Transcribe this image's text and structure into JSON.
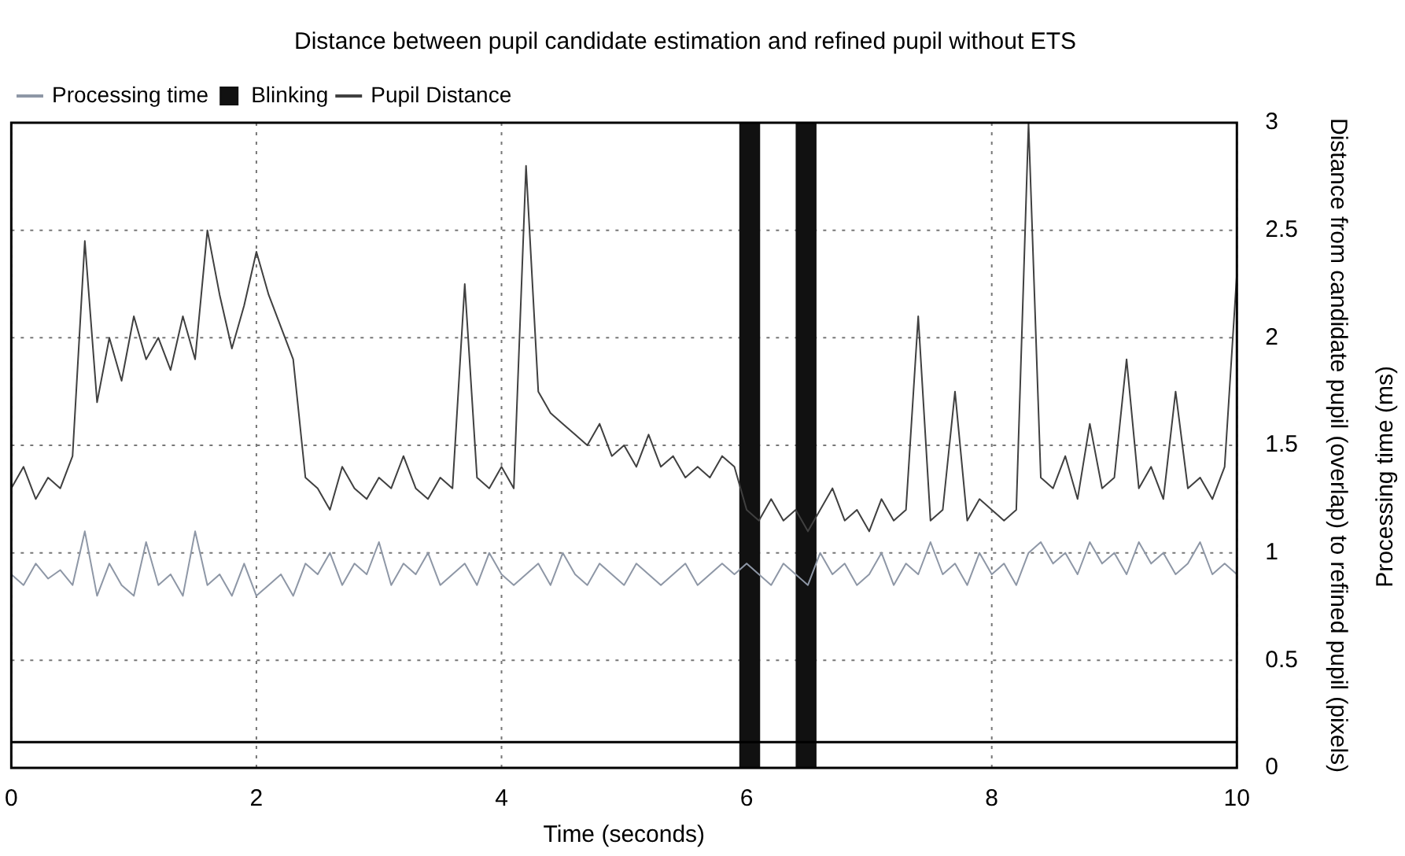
{
  "chart_data": {
    "type": "line",
    "title": "Distance between pupil candidate estimation and refined pupil without ETS",
    "xlabel": "Time (seconds)",
    "ylabel": "Distance from candidate pupil (overlap) to refined pupil (pixels)",
    "y2label": "Processing time (ms)",
    "x": [
      0,
      0.1,
      0.2,
      0.3,
      0.4,
      0.5,
      0.6,
      0.7,
      0.8,
      0.9,
      1,
      1.1,
      1.2,
      1.3,
      1.4,
      1.5,
      1.6,
      1.7,
      1.8,
      1.9,
      2,
      2.1,
      2.2,
      2.3,
      2.4,
      2.5,
      2.6,
      2.7,
      2.8,
      2.9,
      3,
      3.1,
      3.2,
      3.3,
      3.4,
      3.5,
      3.6,
      3.7,
      3.8,
      3.9,
      4,
      4.1,
      4.2,
      4.3,
      4.4,
      4.5,
      4.6,
      4.7,
      4.8,
      4.9,
      5,
      5.1,
      5.2,
      5.3,
      5.4,
      5.5,
      5.6,
      5.7,
      5.8,
      5.9,
      6,
      6.1,
      6.2,
      6.3,
      6.4,
      6.5,
      6.6,
      6.7,
      6.8,
      6.9,
      7,
      7.1,
      7.2,
      7.3,
      7.4,
      7.5,
      7.6,
      7.7,
      7.8,
      7.9,
      8,
      8.1,
      8.2,
      8.3,
      8.4,
      8.5,
      8.6,
      8.7,
      8.8,
      8.9,
      9,
      9.1,
      9.2,
      9.3,
      9.4,
      9.5,
      9.6,
      9.7,
      9.8,
      9.9,
      10
    ],
    "series": [
      {
        "name": "Processing time",
        "color": "#8e97a6",
        "values": [
          0.9,
          0.85,
          0.95,
          0.88,
          0.92,
          0.85,
          1.1,
          0.8,
          0.95,
          0.85,
          0.8,
          1.05,
          0.85,
          0.9,
          0.8,
          1.1,
          0.85,
          0.9,
          0.8,
          0.95,
          0.8,
          0.85,
          0.9,
          0.8,
          0.95,
          0.9,
          1.0,
          0.85,
          0.95,
          0.9,
          1.05,
          0.85,
          0.95,
          0.9,
          1.0,
          0.85,
          0.9,
          0.95,
          0.85,
          1.0,
          0.9,
          0.85,
          0.9,
          0.95,
          0.85,
          1.0,
          0.9,
          0.85,
          0.95,
          0.9,
          0.85,
          0.95,
          0.9,
          0.85,
          0.9,
          0.95,
          0.85,
          0.9,
          0.95,
          0.9,
          0.95,
          0.9,
          0.85,
          0.95,
          0.9,
          0.85,
          1.0,
          0.9,
          0.95,
          0.85,
          0.9,
          1.0,
          0.85,
          0.95,
          0.9,
          1.05,
          0.9,
          0.95,
          0.85,
          1.0,
          0.9,
          0.95,
          0.85,
          1.0,
          1.05,
          0.95,
          1.0,
          0.9,
          1.05,
          0.95,
          1.0,
          0.9,
          1.05,
          0.95,
          1.0,
          0.9,
          0.95,
          1.05,
          0.9,
          0.95,
          0.9
        ]
      },
      {
        "name": "Pupil Distance",
        "color": "#404040",
        "values": [
          1.3,
          1.4,
          1.25,
          1.35,
          1.3,
          1.45,
          2.45,
          1.7,
          2.0,
          1.8,
          2.1,
          1.9,
          2.0,
          1.85,
          2.1,
          1.9,
          2.5,
          2.2,
          1.95,
          2.15,
          2.4,
          2.2,
          2.05,
          1.9,
          1.35,
          1.3,
          1.2,
          1.4,
          1.3,
          1.25,
          1.35,
          1.3,
          1.45,
          1.3,
          1.25,
          1.35,
          1.3,
          2.25,
          1.35,
          1.3,
          1.4,
          1.3,
          2.8,
          1.75,
          1.65,
          1.6,
          1.55,
          1.5,
          1.6,
          1.45,
          1.5,
          1.4,
          1.55,
          1.4,
          1.45,
          1.35,
          1.4,
          1.35,
          1.45,
          1.4,
          1.2,
          1.15,
          1.25,
          1.15,
          1.2,
          1.1,
          1.2,
          1.3,
          1.15,
          1.2,
          1.1,
          1.25,
          1.15,
          1.2,
          2.1,
          1.15,
          1.2,
          1.75,
          1.15,
          1.25,
          1.2,
          1.15,
          1.2,
          3.0,
          1.35,
          1.3,
          1.45,
          1.25,
          1.6,
          1.3,
          1.35,
          1.9,
          1.3,
          1.4,
          1.25,
          1.75,
          1.3,
          1.35,
          1.25,
          1.4,
          2.3
        ]
      }
    ],
    "bands": [
      {
        "axis": "x",
        "from": 5.94,
        "to": 6.11,
        "label": "Blinking",
        "color": "#111111"
      },
      {
        "axis": "x",
        "from": 6.4,
        "to": 6.57,
        "color": "#111111"
      }
    ],
    "ref_lines": [
      {
        "axis": "y",
        "value": 0.12,
        "color": "#000000"
      }
    ],
    "xlim": [
      0,
      10
    ],
    "xticks": [
      0,
      2,
      4,
      6,
      8,
      10
    ],
    "ylim": [
      0,
      3
    ],
    "yticks": [
      0,
      0.5,
      1,
      1.5,
      2,
      2.5,
      3
    ],
    "grid": true,
    "legend": "top left",
    "marker": "none",
    "line_style": "solid"
  }
}
